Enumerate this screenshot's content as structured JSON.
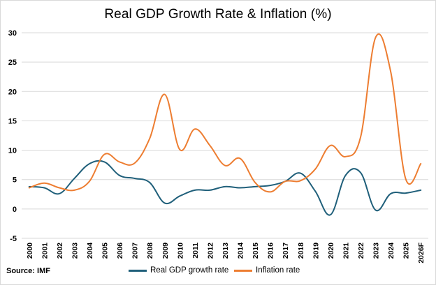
{
  "chart_data": {
    "type": "line",
    "title": "Real GDP Growth Rate & Inflation (%)",
    "xlabel": "",
    "ylabel": "",
    "ylim": [
      -5,
      30
    ],
    "y_ticks": [
      -5,
      0,
      5,
      10,
      15,
      20,
      25,
      30
    ],
    "grid": true,
    "legend_position": "bottom",
    "source_note": "Source: IMF",
    "x": [
      "2000",
      "2001",
      "2002",
      "2003",
      "2004",
      "2005",
      "2006",
      "2007",
      "2008",
      "2009",
      "2010",
      "2011",
      "2012",
      "2013",
      "2014",
      "2015",
      "2016",
      "2017",
      "2018",
      "2019",
      "2020",
      "2021",
      "2022",
      "2023",
      "2024",
      "2025",
      "2026F"
    ],
    "series": [
      {
        "name": "Real GDP growth rate",
        "color": "#1f5f7a",
        "values": [
          3.8,
          3.6,
          2.6,
          5.2,
          7.7,
          8.0,
          5.7,
          5.2,
          4.5,
          1.0,
          2.2,
          3.2,
          3.2,
          3.8,
          3.6,
          3.8,
          4.0,
          4.7,
          6.1,
          3.0,
          -1.0,
          5.7,
          6.2,
          -0.2,
          2.6,
          2.7,
          3.2
        ]
      },
      {
        "name": "Inflation rate",
        "color": "#ed7d31",
        "values": [
          3.6,
          4.4,
          3.6,
          3.2,
          4.7,
          9.3,
          8.0,
          7.8,
          12.0,
          19.5,
          10.1,
          13.6,
          10.8,
          7.4,
          8.6,
          4.5,
          2.9,
          4.7,
          4.8,
          6.8,
          10.8,
          8.9,
          12.2,
          29.2,
          23.4,
          5.1,
          7.7
        ]
      }
    ]
  }
}
